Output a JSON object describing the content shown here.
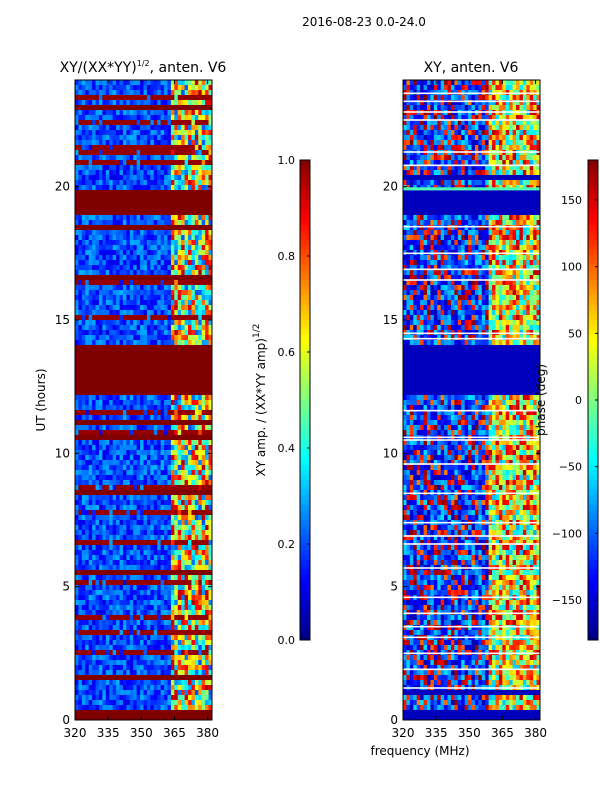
{
  "figure": {
    "suptitle": "2016-08-23 0.0-24.0",
    "shared_xlabel": "frequency (MHz)"
  },
  "chart_data": [
    {
      "type": "heatmap",
      "title": "XY/(XX*YY)",
      "title_superscript": "1/2",
      "title_suffix": ", anten. V6",
      "xlabel": "",
      "ylabel": "UT (hours)",
      "xlim": [
        320,
        382
      ],
      "ylim": [
        0,
        24
      ],
      "xticks": [
        320,
        335,
        350,
        365,
        380
      ],
      "yticks": [
        0,
        5,
        10,
        15,
        20
      ],
      "colormap": "jet",
      "colorbar": {
        "label": "XY amp. / (XX*YY amp)",
        "label_superscript": "1/2",
        "vmin": 0.0,
        "vmax": 1.0,
        "ticks": [
          "0.0",
          "0.2",
          "0.4",
          "0.6",
          "0.8",
          "1.0"
        ],
        "tick_values": [
          0.0,
          0.2,
          0.4,
          0.6,
          0.8,
          1.0
        ]
      },
      "saturated_bands_hours": [
        [
          0.0,
          0.45
        ],
        [
          1.55,
          1.75
        ],
        [
          5.45,
          5.65
        ],
        [
          8.4,
          8.6
        ],
        [
          10.55,
          10.7
        ],
        [
          11.05,
          11.3
        ],
        [
          12.15,
          14.15
        ],
        [
          16.5,
          16.6
        ],
        [
          18.4,
          18.6
        ],
        [
          18.9,
          19.9
        ],
        [
          22.9,
          23.1
        ]
      ],
      "mid_level_bands_hours": [
        [
          0.85,
          1.0
        ]
      ],
      "bright_channel_range_mhz": [
        363,
        382
      ]
    },
    {
      "type": "heatmap",
      "title": "XY, anten. V6",
      "xlabel": "",
      "ylabel": "",
      "xlim": [
        320,
        382
      ],
      "ylim": [
        0,
        24
      ],
      "xticks": [
        320,
        335,
        350,
        365,
        380
      ],
      "yticks": [
        0,
        5,
        10,
        15,
        20
      ],
      "colormap": "jet",
      "colorbar": {
        "label": "phase (deg)",
        "vmin": -180,
        "vmax": 180,
        "ticks": [
          "150",
          "100",
          "50",
          "0",
          "−50",
          "−100",
          "−150"
        ],
        "tick_values": [
          150,
          100,
          50,
          0,
          -50,
          -100,
          -150
        ]
      },
      "dark_blue_bands_hours": [
        [
          0.0,
          0.4
        ],
        [
          0.85,
          1.1
        ],
        [
          12.2,
          14.05
        ],
        [
          18.95,
          19.8
        ],
        [
          20.3,
          20.45
        ]
      ],
      "white_lines_hours": [
        1.2,
        1.9,
        2.5,
        3.1,
        3.5,
        4.0,
        4.6,
        5.7,
        6.6,
        6.9,
        7.4,
        8.5,
        9.6,
        10.5,
        10.6,
        11.6,
        14.3,
        14.5,
        16.5,
        16.9,
        17.5,
        18.5,
        19.9,
        20.8,
        21.3,
        22.5,
        22.8,
        23.2,
        23.5
      ]
    }
  ]
}
